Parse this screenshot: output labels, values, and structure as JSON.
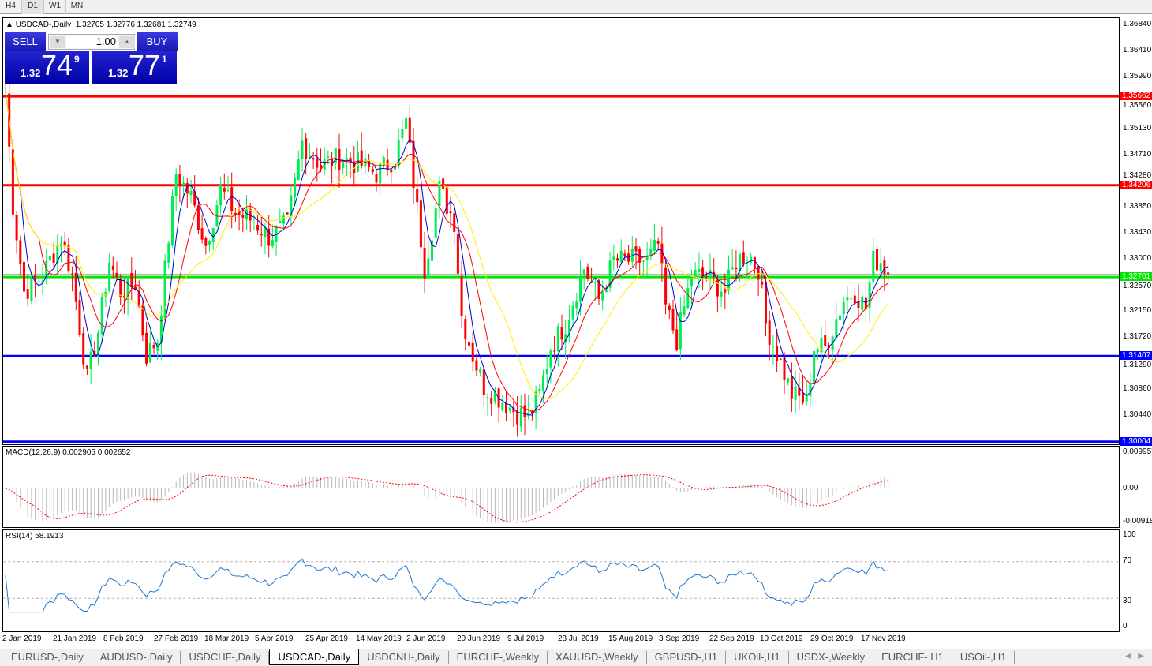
{
  "timeframes": [
    "H4",
    "D1",
    "W1",
    "MN"
  ],
  "active_timeframe": "D1",
  "chart": {
    "title": "USDCAD-,Daily",
    "ohlc": "1.32705 1.32776 1.32681 1.32749"
  },
  "trade_panel": {
    "sell_label": "SELL",
    "buy_label": "BUY",
    "lot": "1.00",
    "sell_prefix": "1.32",
    "sell_big": "74",
    "sell_sup": "9",
    "buy_prefix": "1.32",
    "buy_big": "77",
    "buy_sup": "1"
  },
  "price_axis": [
    "1.36840",
    "1.36410",
    "1.35990",
    "1.35560",
    "1.35130",
    "1.34710",
    "1.34280",
    "1.33850",
    "1.33430",
    "1.33000",
    "1.32570",
    "1.32150",
    "1.31720",
    "1.31290",
    "1.30860",
    "1.30440"
  ],
  "hlines": [
    {
      "price": "1.35662",
      "color": "#ff0000"
    },
    {
      "price": "1.34206",
      "color": "#ff0000"
    },
    {
      "price": "1.32701",
      "color": "#00e600"
    },
    {
      "price": "1.31407",
      "color": "#0000ff"
    },
    {
      "price": "1.30004",
      "color": "#0000ff"
    }
  ],
  "macd": {
    "label": "MACD(12,26,9) 0.002905 0.002652",
    "axis": [
      "0.009957",
      "0.00",
      "-0.009186"
    ]
  },
  "rsi": {
    "label": "RSI(14) 58.1913",
    "axis": [
      "100",
      "70",
      "30",
      "0"
    ]
  },
  "dates": [
    "2 Jan 2019",
    "21 Jan 2019",
    "8 Feb 2019",
    "27 Feb 2019",
    "18 Mar 2019",
    "5 Apr 2019",
    "25 Apr 2019",
    "14 May 2019",
    "2 Jun 2019",
    "20 Jun 2019",
    "9 Jul 2019",
    "28 Jul 2019",
    "15 Aug 2019",
    "3 Sep 2019",
    "22 Sep 2019",
    "10 Oct 2019",
    "29 Oct 2019",
    "17 Nov 2019"
  ],
  "colors": {
    "bull": "#00ee55",
    "bear": "#ff0000",
    "ma_fast": "#0000cc",
    "ma_mid": "#ff0000",
    "ma_slow": "#ffee00",
    "rsi": "#1e78d2"
  },
  "chart_data": {
    "type": "candlestick",
    "symbol": "USDCAD",
    "timeframe": "Daily",
    "key_closes": [
      [
        0,
        1.3575
      ],
      [
        2,
        1.3388
      ],
      [
        5,
        1.3246
      ],
      [
        10,
        1.3272
      ],
      [
        15,
        1.3336
      ],
      [
        18,
        1.3272
      ],
      [
        22,
        1.3103
      ],
      [
        25,
        1.3181
      ],
      [
        28,
        1.3297
      ],
      [
        31,
        1.3246
      ],
      [
        35,
        1.3259
      ],
      [
        38,
        1.3142
      ],
      [
        41,
        1.3168
      ],
      [
        44,
        1.3336
      ],
      [
        46,
        1.344
      ],
      [
        50,
        1.3401
      ],
      [
        54,
        1.3323
      ],
      [
        58,
        1.3414
      ],
      [
        62,
        1.3375
      ],
      [
        67,
        1.3362
      ],
      [
        71,
        1.3336
      ],
      [
        76,
        1.3356
      ],
      [
        80,
        1.3491
      ],
      [
        85,
        1.3453
      ],
      [
        90,
        1.3466
      ],
      [
        96,
        1.3453
      ],
      [
        100,
        1.344
      ],
      [
        105,
        1.3466
      ],
      [
        108,
        1.3524
      ],
      [
        110,
        1.3427
      ],
      [
        113,
        1.3285
      ],
      [
        117,
        1.3414
      ],
      [
        121,
        1.3362
      ],
      [
        123,
        1.3207
      ],
      [
        126,
        1.3142
      ],
      [
        129,
        1.3091
      ],
      [
        132,
        1.3078
      ],
      [
        137,
        1.3052
      ],
      [
        141,
        1.3039
      ],
      [
        144,
        1.3078
      ],
      [
        147,
        1.3155
      ],
      [
        151,
        1.3194
      ],
      [
        156,
        1.3285
      ],
      [
        160,
        1.3233
      ],
      [
        164,
        1.3297
      ],
      [
        168,
        1.3297
      ],
      [
        173,
        1.3297
      ],
      [
        176,
        1.3323
      ],
      [
        178,
        1.322
      ],
      [
        181,
        1.3168
      ],
      [
        185,
        1.3272
      ],
      [
        189,
        1.3272
      ],
      [
        194,
        1.3246
      ],
      [
        197,
        1.3297
      ],
      [
        200,
        1.331
      ],
      [
        203,
        1.3285
      ],
      [
        205,
        1.3194
      ],
      [
        209,
        1.3129
      ],
      [
        212,
        1.3078
      ],
      [
        216,
        1.3065
      ],
      [
        218,
        1.3155
      ],
      [
        221,
        1.3155
      ],
      [
        226,
        1.3233
      ],
      [
        229,
        1.3246
      ],
      [
        232,
        1.322
      ],
      [
        234,
        1.3297
      ],
      [
        236,
        1.3297
      ],
      [
        238,
        1.3275
      ]
    ]
  },
  "tabs": [
    "EURUSD-,Daily",
    "AUDUSD-,Daily",
    "USDCHF-,Daily",
    "USDCAD-,Daily",
    "USDCNH-,Daily",
    "EURCHF-,Weekly",
    "XAUUSD-,Weekly",
    "GBPUSD-,H1",
    "UKOil-,H1",
    "USDX-,Weekly",
    "EURCHF-,H1",
    "USOil-,H1"
  ],
  "active_tab": "USDCAD-,Daily"
}
